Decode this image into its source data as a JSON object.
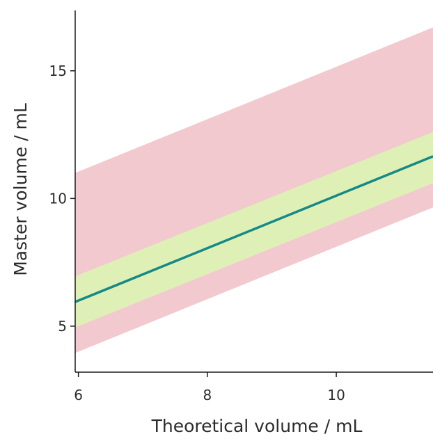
{
  "chart_data": {
    "type": "line",
    "title": "",
    "xlabel": "Theoretical volume / mL",
    "ylabel": "Master volume / mL",
    "xlim": [
      5.95,
      11.5
    ],
    "ylim": [
      3.2,
      17.5
    ],
    "x_ticks": [
      6,
      8,
      10
    ],
    "y_ticks": [
      5,
      10,
      15
    ],
    "grid": false,
    "legend": "none",
    "series": [
      {
        "x": [
          5.95,
          11.5
        ],
        "y": [
          5.95,
          11.65
        ],
        "color": "#138a86"
      }
    ],
    "bands": [
      {
        "x": [
          5.95,
          11.5
        ],
        "lower": [
          3.95,
          9.65
        ],
        "upper": [
          11.0,
          16.7
        ],
        "color": "#f2c9cf"
      },
      {
        "x": [
          5.95,
          11.5
        ],
        "lower": [
          4.95,
          10.6
        ],
        "upper": [
          6.95,
          12.6
        ],
        "color": "#dff0b6"
      }
    ]
  }
}
